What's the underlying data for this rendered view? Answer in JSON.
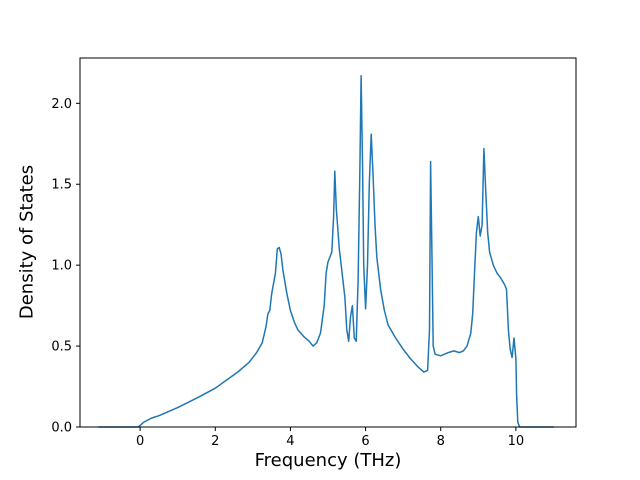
{
  "chart_data": {
    "type": "line",
    "title": "",
    "xlabel": "Frequency (THz)",
    "ylabel": "Density of States",
    "xlim": [
      -1.6,
      11.6
    ],
    "ylim": [
      0,
      2.28
    ],
    "grid": false,
    "legend_position": "none",
    "line_color": "#1f77b4",
    "line_width": 1.5,
    "axis_color": "#000000",
    "background_color": "#ffffff",
    "xticks": {
      "values": [
        0,
        2,
        4,
        6,
        8,
        10
      ],
      "labels": [
        "0",
        "2",
        "4",
        "6",
        "8",
        "10"
      ]
    },
    "yticks": {
      "values": [
        0,
        0.5,
        1.0,
        1.5,
        2.0
      ],
      "labels": [
        "0.0",
        "0.5",
        "1.0",
        "1.5",
        "2.0"
      ]
    },
    "series": [
      {
        "name": "density-of-states",
        "x": [
          -1.1,
          -0.5,
          -0.05,
          0.0,
          0.1,
          0.3,
          0.5,
          0.7,
          1.0,
          1.3,
          1.6,
          2.0,
          2.3,
          2.6,
          2.9,
          3.1,
          3.25,
          3.35,
          3.4,
          3.45,
          3.5,
          3.6,
          3.65,
          3.7,
          3.75,
          3.8,
          3.9,
          4.0,
          4.1,
          4.2,
          4.35,
          4.5,
          4.6,
          4.7,
          4.8,
          4.9,
          4.95,
          5.0,
          5.05,
          5.1,
          5.15,
          5.18,
          5.22,
          5.3,
          5.35,
          5.45,
          5.5,
          5.55,
          5.6,
          5.65,
          5.7,
          5.75,
          5.8,
          5.85,
          5.88,
          5.92,
          5.95,
          6.0,
          6.05,
          6.1,
          6.15,
          6.2,
          6.25,
          6.3,
          6.4,
          6.5,
          6.6,
          6.8,
          7.0,
          7.2,
          7.4,
          7.55,
          7.65,
          7.7,
          7.73,
          7.77,
          7.8,
          7.85,
          8.0,
          8.1,
          8.2,
          8.35,
          8.5,
          8.6,
          8.7,
          8.8,
          8.85,
          8.9,
          8.95,
          9.0,
          9.05,
          9.1,
          9.15,
          9.2,
          9.25,
          9.3,
          9.4,
          9.5,
          9.6,
          9.7,
          9.75,
          9.8,
          9.85,
          9.9,
          9.95,
          10.0,
          10.02,
          10.05,
          10.1,
          10.5,
          11.0
        ],
        "y": [
          0,
          0,
          0,
          0.01,
          0.03,
          0.055,
          0.07,
          0.09,
          0.12,
          0.155,
          0.19,
          0.24,
          0.29,
          0.34,
          0.4,
          0.46,
          0.52,
          0.62,
          0.7,
          0.72,
          0.82,
          0.95,
          1.1,
          1.11,
          1.07,
          0.97,
          0.83,
          0.72,
          0.65,
          0.6,
          0.56,
          0.53,
          0.5,
          0.52,
          0.58,
          0.75,
          0.95,
          1.02,
          1.05,
          1.08,
          1.3,
          1.58,
          1.35,
          1.1,
          1.0,
          0.8,
          0.6,
          0.53,
          0.68,
          0.75,
          0.55,
          0.53,
          0.9,
          1.6,
          2.17,
          1.6,
          1.0,
          0.73,
          1.0,
          1.5,
          1.81,
          1.55,
          1.25,
          1.05,
          0.85,
          0.72,
          0.63,
          0.55,
          0.48,
          0.42,
          0.37,
          0.34,
          0.35,
          0.6,
          1.64,
          1.0,
          0.5,
          0.45,
          0.44,
          0.45,
          0.46,
          0.47,
          0.46,
          0.47,
          0.5,
          0.58,
          0.7,
          0.95,
          1.2,
          1.3,
          1.18,
          1.25,
          1.72,
          1.45,
          1.2,
          1.08,
          1.0,
          0.95,
          0.92,
          0.88,
          0.85,
          0.6,
          0.48,
          0.43,
          0.55,
          0.42,
          0.2,
          0.03,
          0.0,
          0.0,
          0.0
        ]
      }
    ]
  }
}
